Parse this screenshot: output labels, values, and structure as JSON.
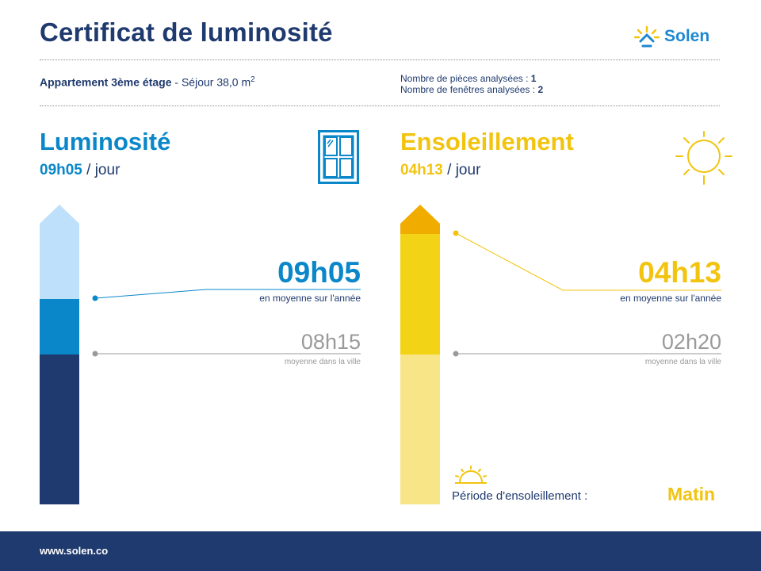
{
  "header": {
    "title": "Certificat de luminosité",
    "brand": "Solen"
  },
  "property": {
    "name": "Appartement 3ème étage",
    "separator": " - ",
    "room": "Séjour 38,0 m",
    "area_exponent": "2"
  },
  "analysis": {
    "rooms_label": "Nombre de pièces analysées : ",
    "rooms_value": "1",
    "windows_label": "Nombre de fenêtres analysées : ",
    "windows_value": "2"
  },
  "luminosite": {
    "heading": "Luminosité",
    "value": "09h05",
    "per_day": " / jour",
    "average_value": "09h05",
    "average_caption": "en moyenne sur l'année",
    "city_value": "08h15",
    "city_caption": "moyenne dans la ville",
    "colors": {
      "accent": "#0a87c8",
      "light": "#bfe0fa",
      "dark": "#1f3a6e"
    }
  },
  "ensoleillement": {
    "heading": "Ensoleillement",
    "value": "04h13",
    "per_day": " / jour",
    "average_value": "04h13",
    "average_caption": "en moyenne sur l'année",
    "city_value": "02h20",
    "city_caption": "moyenne dans la ville",
    "period_label": "Période d'ensoleillement :",
    "period_value": "Matin",
    "colors": {
      "accent": "#f2c40f",
      "tip": "#f0ad00",
      "light": "#f7e588"
    }
  },
  "footer": {
    "url": "www.solen.co",
    "color": "#1f3a6e"
  },
  "icons": [
    "sun-logo-icon",
    "window-icon",
    "sun-icon",
    "sunrise-icon"
  ]
}
